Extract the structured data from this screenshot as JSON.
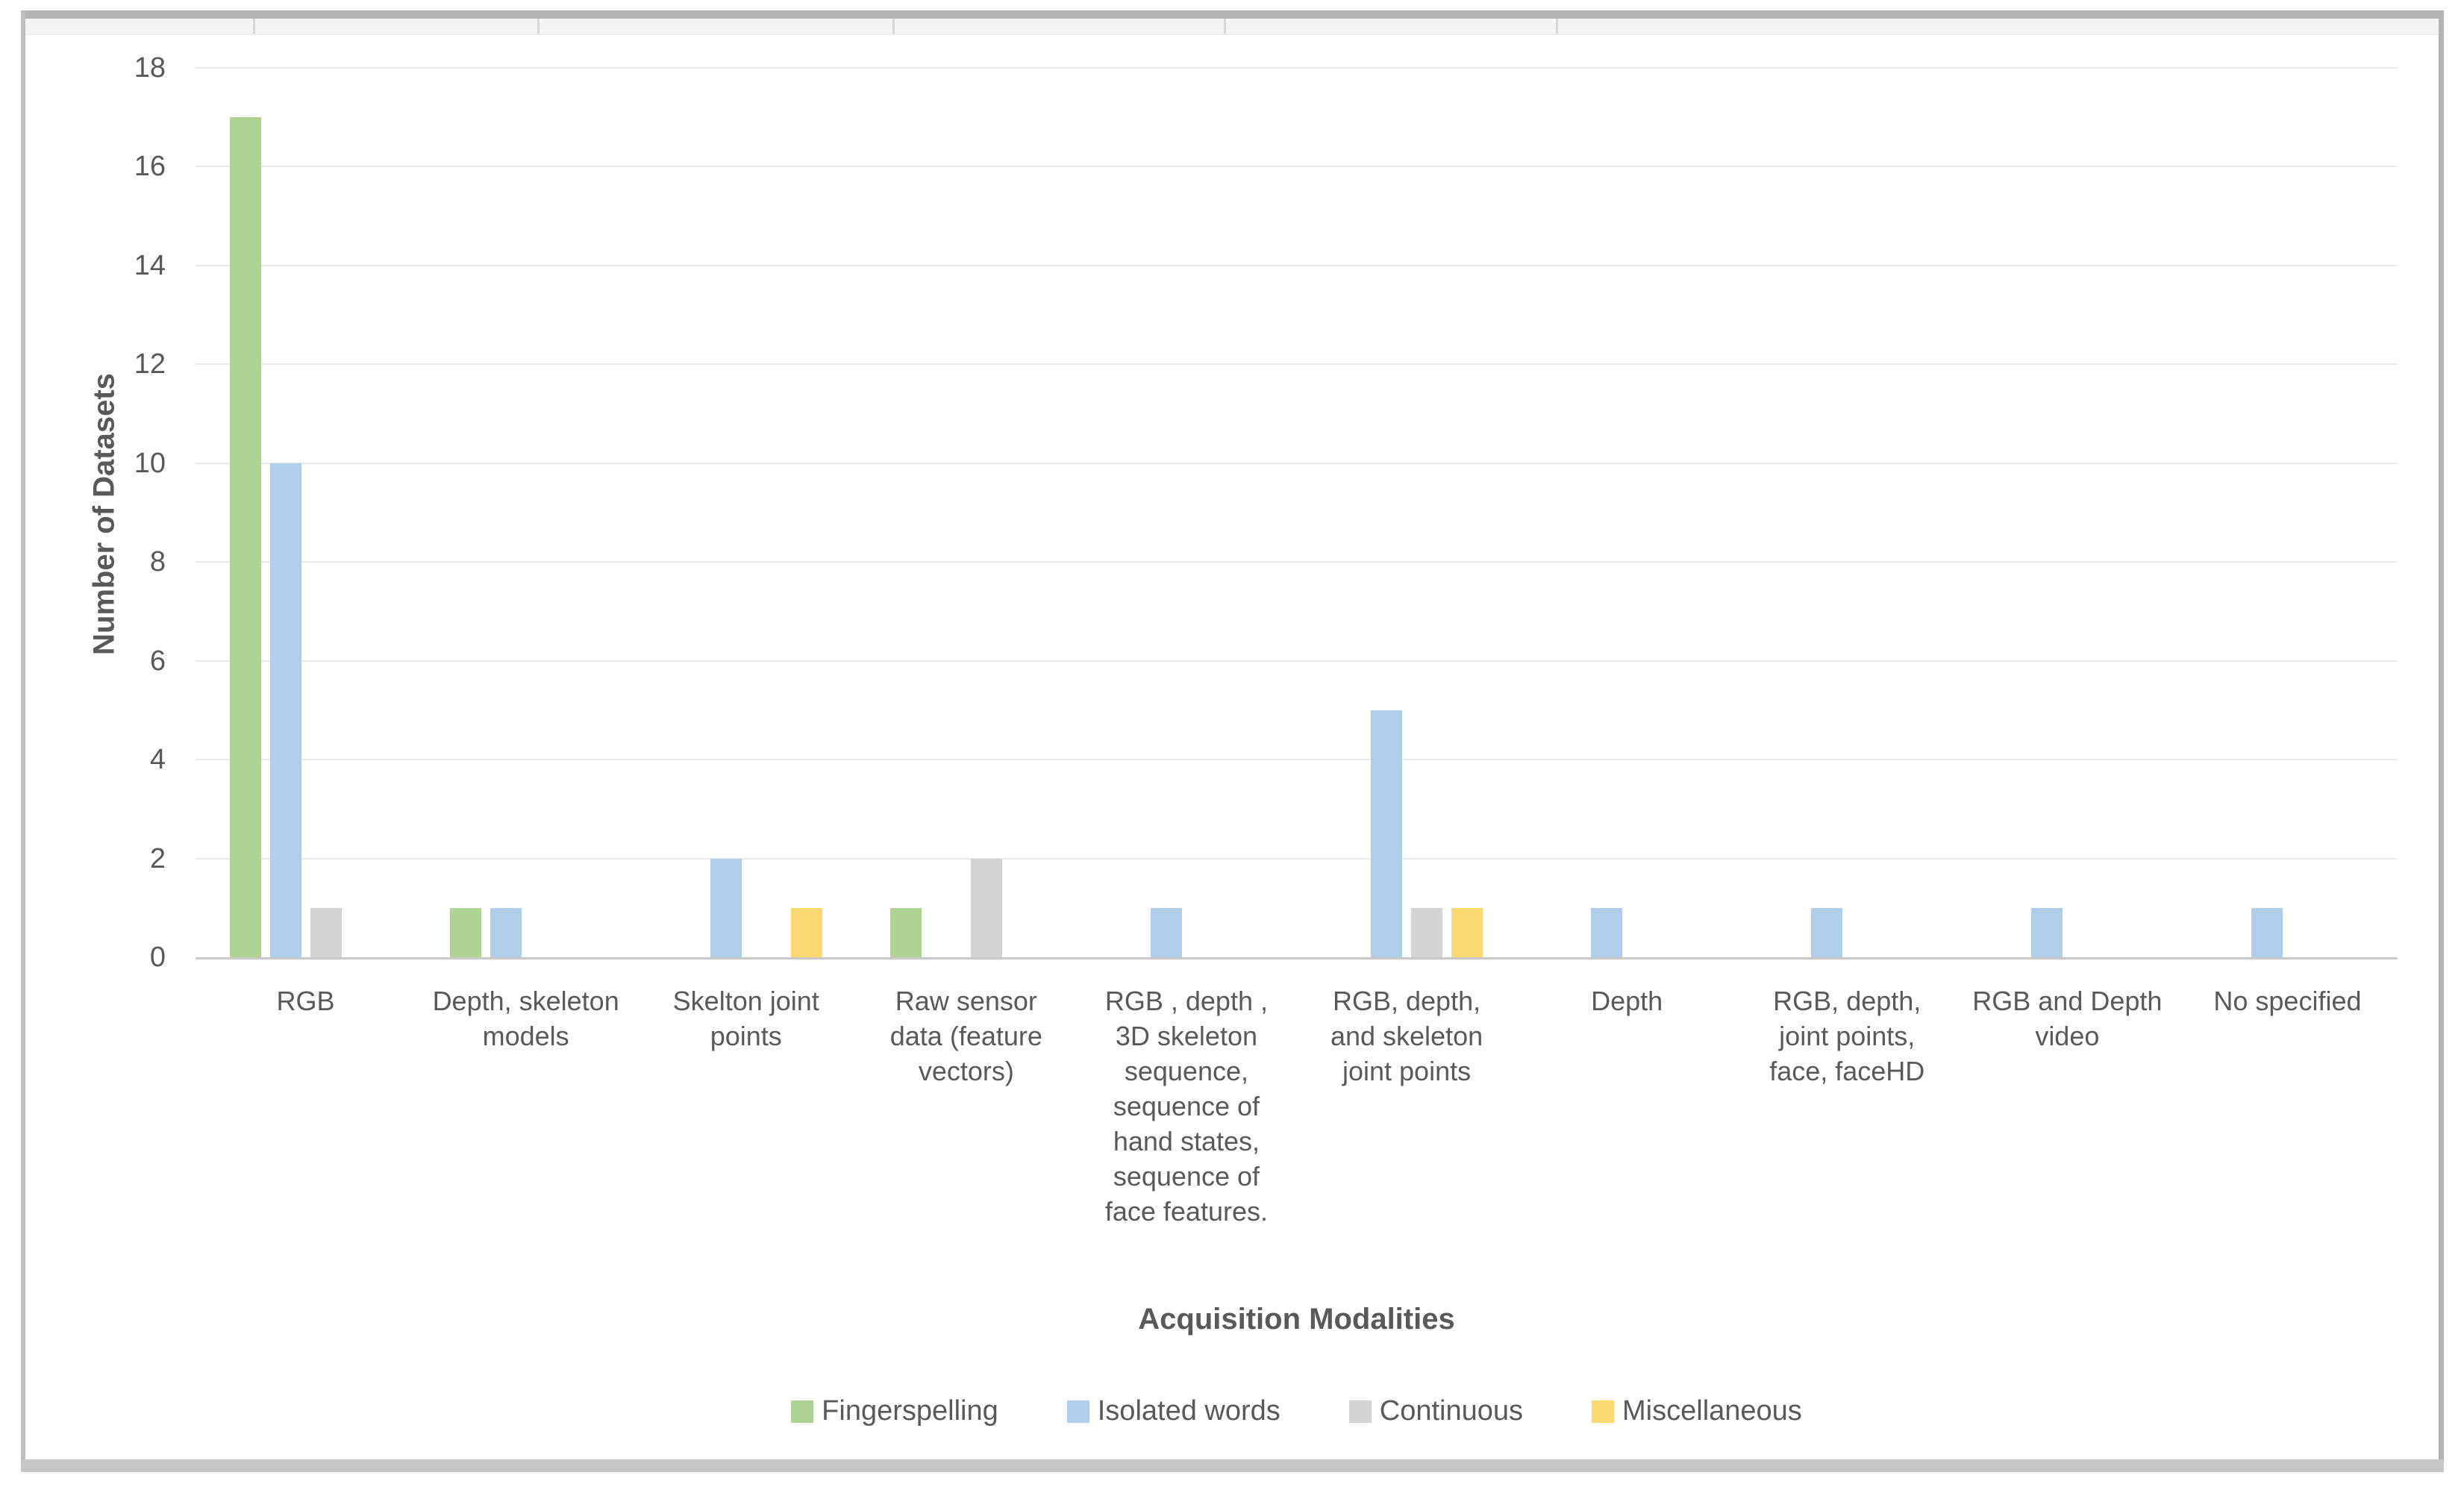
{
  "chart_data": {
    "type": "bar",
    "title": "",
    "xlabel": "Acquisition Modalities",
    "ylabel": "Number of Datasets",
    "ylim": [
      0,
      18
    ],
    "ytick_step": 2,
    "yticks": [
      0,
      2,
      4,
      6,
      8,
      10,
      12,
      14,
      16,
      18
    ],
    "grid": true,
    "legend_position": "bottom",
    "categories": [
      "RGB",
      "Depth, skeleton models",
      "Skelton joint points",
      "Raw sensor data (feature vectors)",
      "RGB , depth , 3D skeleton sequence, sequence of hand states, sequence of face features.",
      "RGB, depth, and skeleton joint points",
      "Depth",
      "RGB, depth, joint points, face, faceHD",
      "RGB and Depth video",
      "No specified"
    ],
    "series": [
      {
        "name": "Fingerspelling",
        "color": "#afd295",
        "values": [
          17,
          1,
          0,
          1,
          0,
          0,
          0,
          0,
          0,
          0
        ]
      },
      {
        "name": "Isolated words",
        "color": "#b0cde9",
        "values": [
          10,
          1,
          2,
          0,
          1,
          5,
          1,
          1,
          1,
          1
        ]
      },
      {
        "name": "Continuous",
        "color": "#d3d3d3",
        "values": [
          1,
          0,
          0,
          2,
          0,
          1,
          0,
          0,
          0,
          0
        ]
      },
      {
        "name": "Miscellaneous",
        "color": "#fcd873",
        "values": [
          0,
          0,
          1,
          0,
          0,
          1,
          0,
          0,
          0,
          0
        ]
      }
    ]
  }
}
